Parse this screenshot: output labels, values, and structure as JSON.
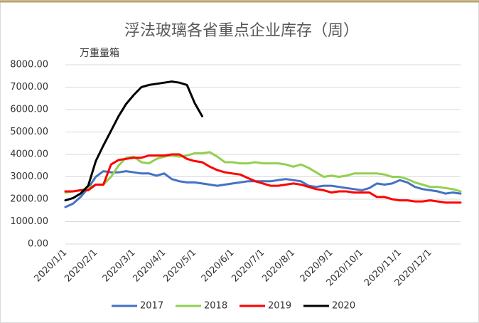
{
  "chart_data": {
    "type": "line",
    "title": "浮法玻璃各省重点企业库存（周）",
    "y_label": "万重量箱",
    "categories": [
      "2020/1/1",
      null,
      null,
      null,
      "2020/2/1",
      null,
      null,
      null,
      null,
      "2020/3/1",
      null,
      null,
      null,
      "2020/4/1",
      null,
      null,
      null,
      "2020/5/1",
      null,
      null,
      null,
      null,
      "2020/6/1",
      null,
      null,
      null,
      "2020/7/1",
      null,
      null,
      null,
      "2020/8/1",
      null,
      null,
      null,
      null,
      "2020/9/1",
      null,
      null,
      null,
      "2020/10/1",
      null,
      null,
      null,
      null,
      "2020/11/1",
      null,
      null,
      null,
      "2020/12/1",
      null,
      null,
      null,
      null
    ],
    "series": [
      {
        "name": "2017",
        "color": "#4472c4",
        "values": [
          1650,
          1800,
          2100,
          2500,
          3000,
          3250,
          3200,
          3200,
          3250,
          3200,
          3150,
          3150,
          3050,
          3150,
          2900,
          2800,
          2750,
          2750,
          2700,
          2650,
          2600,
          2650,
          2700,
          2750,
          2800,
          2800,
          2800,
          2800,
          2850,
          2900,
          2850,
          2800,
          2600,
          2550,
          2600,
          2600,
          2550,
          2500,
          2450,
          2400,
          2500,
          2700,
          2650,
          2700,
          2850,
          2750,
          2550,
          2450,
          2400,
          2350,
          2250,
          2300,
          2250
        ]
      },
      {
        "name": "2018",
        "color": "#92d050",
        "values": [
          2300,
          2350,
          2400,
          2500,
          2650,
          2650,
          3000,
          3500,
          3850,
          3900,
          3650,
          3600,
          3800,
          3900,
          3950,
          3900,
          3950,
          4050,
          4050,
          4100,
          3900,
          3650,
          3650,
          3600,
          3600,
          3650,
          3600,
          3600,
          3600,
          3550,
          3450,
          3550,
          3400,
          3200,
          3000,
          3050,
          3000,
          3050,
          3150,
          3150,
          3150,
          3150,
          3100,
          3000,
          3000,
          2900,
          2750,
          2650,
          2550,
          2550,
          2500,
          2450,
          2350
        ]
      },
      {
        "name": "2019",
        "color": "#ff0000",
        "values": [
          2350,
          2350,
          2400,
          2400,
          2650,
          2650,
          3550,
          3750,
          3800,
          3850,
          3850,
          3950,
          3950,
          3950,
          4000,
          4000,
          3800,
          3700,
          3650,
          3450,
          3300,
          3200,
          3150,
          3100,
          2950,
          2800,
          2700,
          2600,
          2600,
          2650,
          2700,
          2650,
          2550,
          2450,
          2400,
          2300,
          2350,
          2350,
          2300,
          2300,
          2300,
          2100,
          2100,
          2000,
          1950,
          1950,
          1900,
          1900,
          1950,
          1900,
          1850,
          1850,
          1850
        ]
      },
      {
        "name": "2020",
        "color": "#000000",
        "values": [
          1950,
          2050,
          2250,
          2600,
          3700,
          4400,
          5050,
          5700,
          6250,
          6650,
          7000,
          7100,
          7150,
          7200,
          7250,
          7200,
          7100,
          6300,
          5700,
          null,
          null,
          null,
          null,
          null,
          null,
          null,
          null,
          null,
          null,
          null,
          null,
          null,
          null,
          null,
          null,
          null,
          null,
          null,
          null,
          null,
          null,
          null,
          null,
          null,
          null,
          null,
          null,
          null,
          null,
          null,
          null,
          null,
          null
        ]
      }
    ],
    "ylim": [
      0,
      8000
    ],
    "yticks": [
      {
        "value": 0,
        "label": "0.00"
      },
      {
        "value": 1000,
        "label": "1000.00"
      },
      {
        "value": 2000,
        "label": "2000.00"
      },
      {
        "value": 3000,
        "label": "3000.00"
      },
      {
        "value": 4000,
        "label": "4000.00"
      },
      {
        "value": 5000,
        "label": "5000.00"
      },
      {
        "value": 6000,
        "label": "6000.00"
      },
      {
        "value": 7000,
        "label": "7000.00"
      },
      {
        "value": 8000,
        "label": "8000.00"
      }
    ],
    "grid": true
  }
}
